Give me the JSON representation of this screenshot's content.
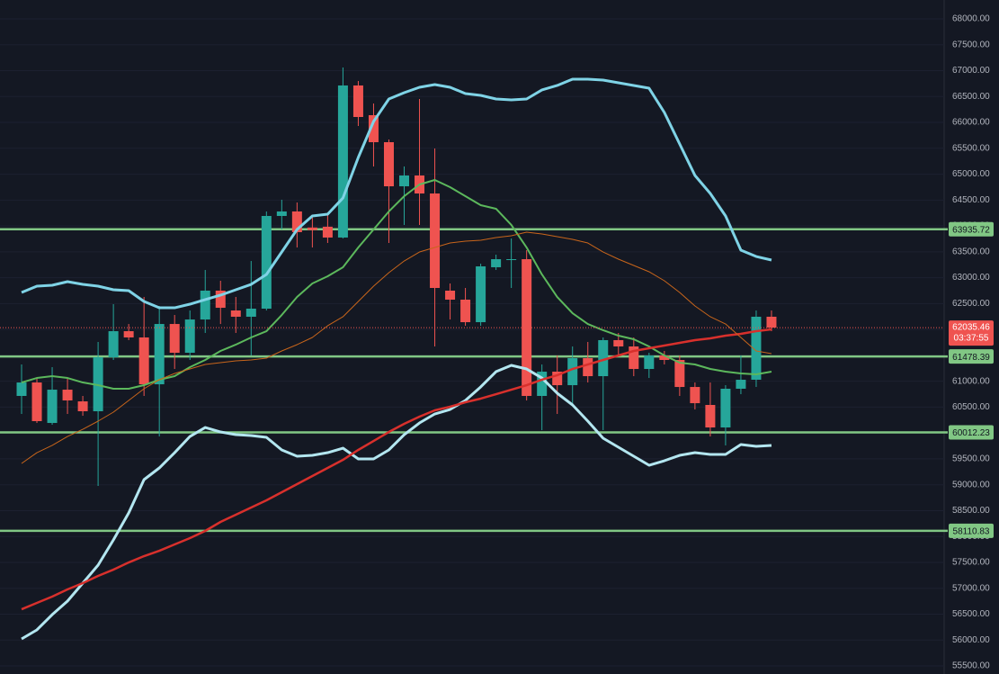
{
  "chart_data": {
    "type": "candlestick",
    "colors": {
      "up": "#26a69a",
      "down": "#ef5350",
      "background": "#141823"
    },
    "grid": true,
    "ylim": [
      55344,
      68365
    ],
    "yticks": [
      {
        "value": 55500,
        "label": "55500.00"
      },
      {
        "value": 56000,
        "label": "56000.00"
      },
      {
        "value": 56500,
        "label": "56500.00"
      },
      {
        "value": 57000,
        "label": "57000.00"
      },
      {
        "value": 57500,
        "label": "57500.00"
      },
      {
        "value": 58000,
        "label": "58000.00"
      },
      {
        "value": 58500,
        "label": "58500.00"
      },
      {
        "value": 59000,
        "label": "59000.00"
      },
      {
        "value": 59500,
        "label": "59500.00"
      },
      {
        "value": 60000,
        "label": "60000.00"
      },
      {
        "value": 60500,
        "label": "60500.00"
      },
      {
        "value": 61000,
        "label": "61000.00"
      },
      {
        "value": 61500,
        "label": "61500.00"
      },
      {
        "value": 62000,
        "label": "62000.00"
      },
      {
        "value": 62500,
        "label": "62500.00"
      },
      {
        "value": 63000,
        "label": "63000.00"
      },
      {
        "value": 63500,
        "label": "63500.00"
      },
      {
        "value": 64000,
        "label": "64000.00"
      },
      {
        "value": 64500,
        "label": "64500.00"
      },
      {
        "value": 65000,
        "label": "65000.00"
      },
      {
        "value": 65500,
        "label": "65500.00"
      },
      {
        "value": 66000,
        "label": "66000.00"
      },
      {
        "value": 66500,
        "label": "66500.00"
      },
      {
        "value": 67000,
        "label": "67000.00"
      },
      {
        "value": 67500,
        "label": "67500.00"
      },
      {
        "value": 68000,
        "label": "68000.00"
      }
    ],
    "open": [
      60716,
      60976,
      60194,
      60837,
      60611,
      60420,
      61463,
      61967,
      61846,
      60941,
      62106,
      61550,
      62193,
      62750,
      62367,
      62246,
      62402,
      64193,
      64280,
      63970,
      63985,
      63776,
      66714,
      66140,
      65618,
      64766,
      64975,
      64627,
      62750,
      62576,
      62141,
      63202,
      63358,
      63358,
      60716,
      61185,
      60924,
      61446,
      61098,
      61794,
      61672,
      61237,
      61498,
      61411,
      60889,
      60542,
      60107,
      60855,
      61029,
      62246
    ],
    "high": [
      61324,
      61063,
      61272,
      61063,
      60716,
      61759,
      62489,
      62106,
      62628,
      62454,
      62280,
      62367,
      63150,
      62941,
      62628,
      63323,
      64280,
      64506,
      64453,
      64193,
      64227,
      67061,
      66800,
      66366,
      65670,
      65149,
      66453,
      65497,
      62889,
      62802,
      63271,
      63445,
      63758,
      63532,
      61324,
      61498,
      61672,
      61759,
      61846,
      61933,
      61846,
      61550,
      61585,
      61498,
      60976,
      60976,
      60924,
      61498,
      62367,
      62367
    ],
    "low": [
      60368,
      60194,
      60159,
      60368,
      60333,
      58977,
      61411,
      61794,
      60716,
      59933,
      61237,
      61411,
      61933,
      62106,
      61933,
      61498,
      62367,
      63932,
      63584,
      63584,
      63671,
      63758,
      65931,
      65149,
      63671,
      64019,
      64019,
      61672,
      62193,
      62072,
      62072,
      63150,
      62802,
      60629,
      60055,
      60368,
      60542,
      60976,
      60055,
      61498,
      61098,
      61063,
      61324,
      60716,
      60455,
      59933,
      59760,
      60750,
      60890,
      61967
    ],
    "close": [
      60976,
      60229,
      60837,
      60629,
      60420,
      61463,
      61967,
      61846,
      60941,
      62106,
      61550,
      62193,
      62750,
      62419,
      62246,
      62402,
      64193,
      64280,
      63880,
      63920,
      63776,
      66714,
      66105,
      65618,
      64766,
      64975,
      64627,
      62802,
      62576,
      62141,
      63219,
      63358,
      63358,
      60716,
      61185,
      60924,
      61446,
      61098,
      61794,
      61672,
      61237,
      61498,
      61411,
      60889,
      60576,
      60107,
      60855,
      61029,
      62246,
      62035.46
    ],
    "lines": [
      {
        "color": "#7fd3e6",
        "width": 3,
        "values": [
          62715,
          62837,
          62854,
          62924,
          62871,
          62837,
          62767,
          62750,
          62541,
          62419,
          62419,
          62489,
          62576,
          62663,
          62767,
          62871,
          63063,
          63497,
          63932,
          64193,
          64227,
          64540,
          65323,
          66018,
          66453,
          66574,
          66679,
          66731,
          66679,
          66557,
          66522,
          66453,
          66435,
          66453,
          66627,
          66714,
          66835,
          66835,
          66818,
          66766,
          66714,
          66661,
          66192,
          65583,
          64975,
          64627,
          64193,
          63532,
          63410,
          63341
        ]
      },
      {
        "color": "#b3e6f0",
        "width": 3,
        "values": [
          56022,
          56196,
          56491,
          56752,
          57100,
          57447,
          57934,
          58456,
          59099,
          59325,
          59620,
          59933,
          60107,
          60020,
          59968,
          59951,
          59916,
          59673,
          59551,
          59568,
          59620,
          59707,
          59499,
          59499,
          59673,
          59968,
          60194,
          60368,
          60455,
          60629,
          60890,
          61185,
          61307,
          61237,
          61063,
          60768,
          60542,
          60229,
          59899,
          59725,
          59551,
          59377,
          59464,
          59568,
          59620,
          59586,
          59586,
          59777,
          59742,
          59760
        ]
      },
      {
        "color": "#5cb85c",
        "width": 2,
        "values": [
          60976,
          61063,
          61098,
          61063,
          60976,
          60924,
          60855,
          60855,
          60924,
          61029,
          61098,
          61272,
          61411,
          61585,
          61707,
          61846,
          61967,
          62280,
          62628,
          62889,
          63028,
          63202,
          63584,
          63932,
          64280,
          64575,
          64801,
          64888,
          64749,
          64575,
          64401,
          64332,
          64019,
          63584,
          63063,
          62628,
          62315,
          62106,
          61985,
          61880,
          61811,
          61672,
          61498,
          61359,
          61324,
          61237,
          61185,
          61150,
          61133,
          61185
        ]
      },
      {
        "color": "#d8302c",
        "width": 2.5,
        "values": [
          56595,
          56717,
          56839,
          56978,
          57100,
          57239,
          57360,
          57499,
          57621,
          57725,
          57847,
          57969,
          58108,
          58282,
          58421,
          58560,
          58699,
          58855,
          59012,
          59168,
          59325,
          59481,
          59673,
          59846,
          60020,
          60177,
          60316,
          60438,
          60507,
          60594,
          60664,
          60750,
          60837,
          60924,
          61029,
          61116,
          61237,
          61324,
          61411,
          61498,
          61585,
          61637,
          61689,
          61741,
          61794,
          61828,
          61880,
          61915,
          61967,
          62002
        ]
      },
      {
        "color": "#c8651b",
        "width": 1,
        "values": [
          59412,
          59620,
          59760,
          59933,
          60072,
          60229,
          60403,
          60629,
          60855,
          61029,
          61150,
          61237,
          61324,
          61359,
          61394,
          61411,
          61446,
          61585,
          61707,
          61846,
          62072,
          62246,
          62541,
          62837,
          63097,
          63323,
          63497,
          63584,
          63671,
          63706,
          63723,
          63775,
          63810,
          63880,
          63845,
          63793,
          63741,
          63671,
          63497,
          63358,
          63237,
          63115,
          62941,
          62715,
          62454,
          62246,
          62106,
          61846,
          61585,
          61533
        ]
      }
    ],
    "levels": [
      63935.72,
      61478.39,
      60012.23,
      58110.83
    ],
    "level_color": "#81c784",
    "last_price": 62035.46,
    "countdown": "03:37:55"
  }
}
